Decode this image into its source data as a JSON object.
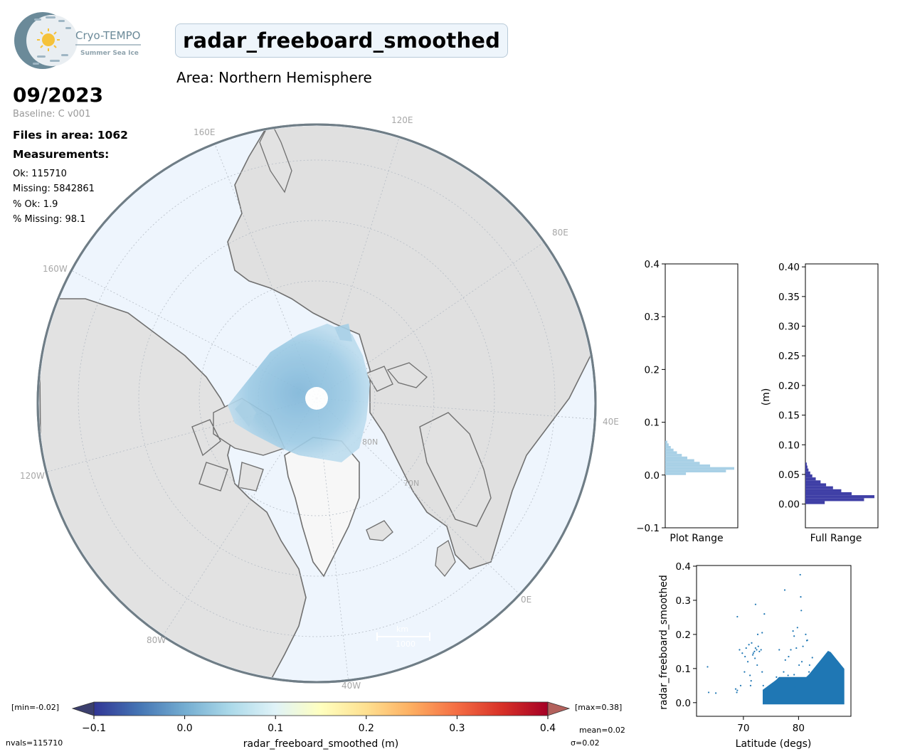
{
  "header": {
    "logo_text": "Cryo-TEMPO",
    "logo_subtext": "Summer Sea Ice",
    "title": "radar_freeboard_smoothed",
    "area": "Area: Northern Hemisphere",
    "date": "09/2023",
    "baseline": "Baseline: C v001"
  },
  "stats": {
    "files": "Files in area: 1062",
    "measurements_heading": "Measurements:",
    "ok": "Ok: 115710",
    "missing": "Missing: 5842861",
    "pct_ok": "% Ok: 1.9",
    "pct_missing": "% Missing: 98.1"
  },
  "map": {
    "lon_labels": [
      "120E",
      "160E",
      "80E",
      "160W",
      "40E",
      "120W",
      "0E",
      "80W",
      "40W"
    ],
    "lat_labels": [
      "80N",
      "70N"
    ],
    "scale_label": "km",
    "scale_value": "1000",
    "colors": {
      "ocean": "#eef5fd",
      "land": "#e2e2e2",
      "coast": "#707070",
      "data": "#8cc0dc"
    }
  },
  "colorbar": {
    "label": "radar_freeboard_smoothed (m)",
    "ticks": [
      "−0.1",
      "0.0",
      "0.1",
      "0.2",
      "0.3",
      "0.4"
    ],
    "min_label": "[min=-0.02]",
    "max_label": "[max=0.38]",
    "colormap": "RdYlBu_r",
    "under_color": "#3b3f6e",
    "over_color": "#b3615c"
  },
  "footer": {
    "nvals": "nvals=115710",
    "mean": "mean=0.02",
    "sigma": "σ=0.02"
  },
  "chart_data": [
    {
      "type": "bar",
      "orientation": "horizontal",
      "xlabel": "Plot Range",
      "yticks": [
        "−0.1",
        "0.0",
        "0.1",
        "0.2",
        "0.3",
        "0.4"
      ],
      "ylim": [
        -0.1,
        0.4
      ],
      "bin_edges": [
        0.0,
        0.005,
        0.01,
        0.015,
        0.02,
        0.025,
        0.03,
        0.035,
        0.04,
        0.045,
        0.05,
        0.055,
        0.06,
        0.065
      ],
      "counts": [
        0.3,
        0.88,
        1.0,
        0.65,
        0.5,
        0.42,
        0.32,
        0.24,
        0.17,
        0.12,
        0.08,
        0.05,
        0.03
      ],
      "color": "#a8d0e6"
    },
    {
      "type": "bar",
      "orientation": "horizontal",
      "xlabel": "Full Range",
      "ylabel": "(m)",
      "yticks": [
        "0.00",
        "0.05",
        "0.10",
        "0.15",
        "0.20",
        "0.25",
        "0.30",
        "0.35",
        "0.40"
      ],
      "ylim": [
        -0.04,
        0.405
      ],
      "bin_edges": [
        0.0,
        0.005,
        0.01,
        0.015,
        0.02,
        0.025,
        0.03,
        0.035,
        0.04,
        0.045,
        0.05,
        0.055,
        0.06,
        0.065,
        0.07
      ],
      "counts": [
        0.28,
        0.85,
        1.0,
        0.67,
        0.52,
        0.4,
        0.3,
        0.22,
        0.15,
        0.1,
        0.07,
        0.045,
        0.03,
        0.02
      ],
      "color": "#3f3fa6"
    },
    {
      "type": "scatter",
      "xlabel": "Latitude (degs)",
      "ylabel": "radar_freeboard_smoothed",
      "xticks": [
        "70",
        "80"
      ],
      "yticks": [
        "0.0",
        "0.1",
        "0.2",
        "0.3",
        "0.4"
      ],
      "xlim": [
        61.5,
        89.5
      ],
      "ylim": [
        -0.04,
        0.402
      ],
      "color": "#1f77b4",
      "points": [
        [
          63.5,
          0.105
        ],
        [
          63.7,
          0.03
        ],
        [
          65,
          0.028
        ],
        [
          68.6,
          0.04
        ],
        [
          68.8,
          0.03
        ],
        [
          68.9,
          0.036
        ],
        [
          68.9,
          0.252
        ],
        [
          69.3,
          0.155
        ],
        [
          69.5,
          0.05
        ],
        [
          69.8,
          0.145
        ],
        [
          70.2,
          0.09
        ],
        [
          70.3,
          0.135
        ],
        [
          70.5,
          0.16
        ],
        [
          70.8,
          0.12
        ],
        [
          71,
          0.17
        ],
        [
          71.2,
          0.08
        ],
        [
          71.3,
          0.05
        ],
        [
          71.4,
          0.064
        ],
        [
          71.5,
          0.175
        ],
        [
          71.7,
          0.14
        ],
        [
          71.8,
          0.145
        ],
        [
          72,
          0.15
        ],
        [
          72.1,
          0.13
        ],
        [
          72.2,
          0.16
        ],
        [
          72.4,
          0.155
        ],
        [
          72.5,
          0.11
        ],
        [
          72.6,
          0.2
        ],
        [
          72.7,
          0.165
        ],
        [
          72.9,
          0.15
        ],
        [
          73.2,
          0.155
        ],
        [
          73.4,
          0.09
        ],
        [
          73.6,
          0.05
        ],
        [
          72.2,
          0.288
        ],
        [
          73.4,
          0.205
        ],
        [
          73.8,
          0.26
        ],
        [
          77.5,
          0.33
        ],
        [
          78.6,
          0.155
        ],
        [
          79,
          0.21
        ],
        [
          79.2,
          0.195
        ],
        [
          79.4,
          0.045
        ],
        [
          79.8,
          0.22
        ],
        [
          80.1,
          0.11
        ],
        [
          80.3,
          0.375
        ],
        [
          80.4,
          0.31
        ],
        [
          80.5,
          0.27
        ],
        [
          80.6,
          0.12
        ],
        [
          80.8,
          0.165
        ],
        [
          81.3,
          0.2
        ],
        [
          81.5,
          0.182
        ],
        [
          81.6,
          0.183
        ],
        [
          82,
          0.11
        ],
        [
          82.5,
          0.132
        ],
        [
          76.5,
          0.155
        ],
        [
          77.6,
          0.125
        ],
        [
          78.2,
          0.135
        ],
        [
          79.6,
          0.16
        ],
        [
          76,
          0.075
        ],
        [
          77.3,
          0.09
        ],
        [
          78.1,
          0.08
        ],
        [
          79.2,
          0.082
        ],
        [
          80.6,
          0.07
        ],
        [
          81.9,
          0.09
        ]
      ],
      "dense_band": {
        "lat_range": [
          73.5,
          88.3
        ],
        "value_range": [
          -0.005,
          0.075
        ],
        "peak_lat": 85.5,
        "peak_value": 0.155
      }
    }
  ]
}
